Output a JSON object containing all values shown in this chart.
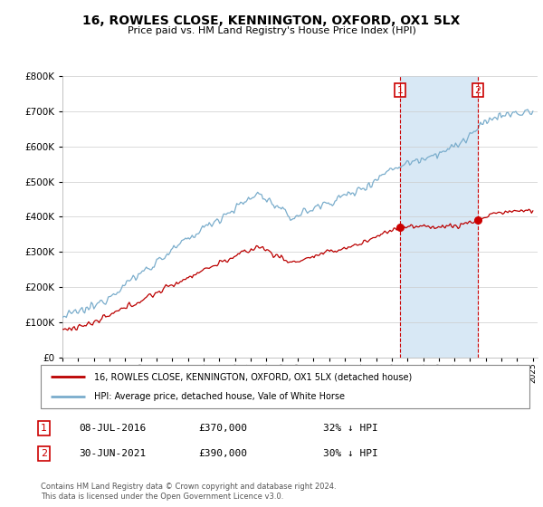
{
  "title": "16, ROWLES CLOSE, KENNINGTON, OXFORD, OX1 5LX",
  "subtitle": "Price paid vs. HM Land Registry's House Price Index (HPI)",
  "legend_property": "16, ROWLES CLOSE, KENNINGTON, OXFORD, OX1 5LX (detached house)",
  "legend_hpi": "HPI: Average price, detached house, Vale of White Horse",
  "marker1_date": "08-JUL-2016",
  "marker1_price": 370000,
  "marker1_label": "£370,000",
  "marker1_pct": "32% ↓ HPI",
  "marker2_date": "30-JUN-2021",
  "marker2_price": 390000,
  "marker2_label": "£390,000",
  "marker2_pct": "30% ↓ HPI",
  "footer": "Contains HM Land Registry data © Crown copyright and database right 2024.\nThis data is licensed under the Open Government Licence v3.0.",
  "property_color": "#bb0000",
  "hpi_color": "#7aadcc",
  "marker_color": "#cc0000",
  "shade_color": "#d8e8f5",
  "ylim": [
    0,
    800000
  ],
  "yticks": [
    0,
    100000,
    200000,
    300000,
    400000,
    500000,
    600000,
    700000,
    800000
  ],
  "start_year": 1995,
  "end_year": 2025,
  "m1_t": 2016.54,
  "m2_t": 2021.5
}
